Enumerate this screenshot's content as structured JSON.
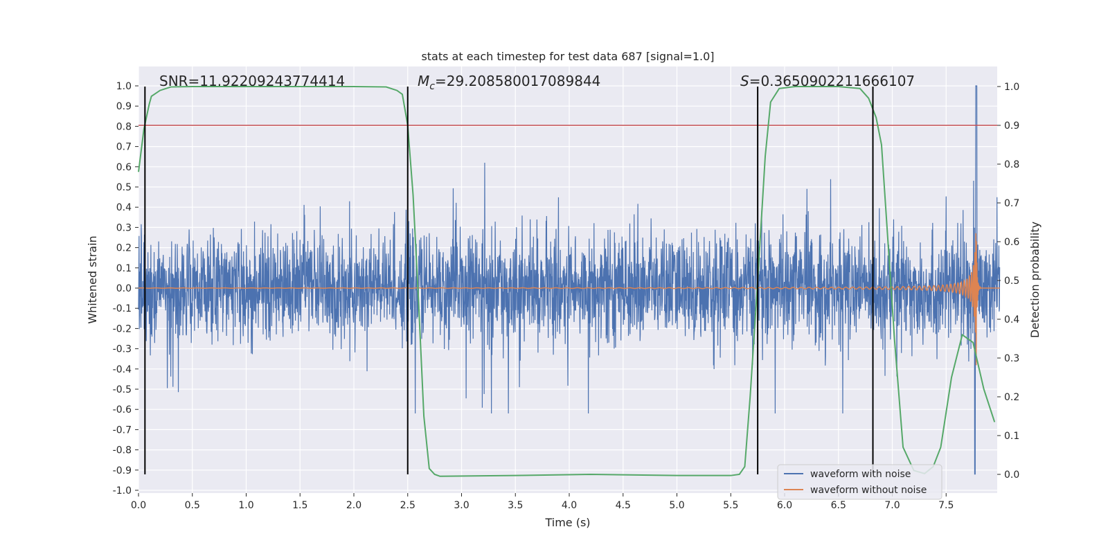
{
  "chart_data": {
    "type": "line",
    "title": "stats at each timestep for test data 687 [signal=1.0]",
    "xlabel": "Time (s)",
    "ylabel": "Whitened strain",
    "ylabel_right": "Detection probability",
    "xlim": [
      0.0,
      8.0
    ],
    "ylim": [
      -1.05,
      1.05
    ],
    "ylim_right": [
      -0.05,
      1.05
    ],
    "xticks": [
      "0.0",
      "0.5",
      "1.0",
      "1.5",
      "2.0",
      "2.5",
      "3.0",
      "3.5",
      "4.0",
      "4.5",
      "5.0",
      "5.5",
      "6.0",
      "6.5",
      "7.0",
      "7.5"
    ],
    "yticks": [
      "-1.0",
      "-0.9",
      "-0.8",
      "-0.7",
      "-0.6",
      "-0.5",
      "-0.4",
      "-0.3",
      "-0.2",
      "-0.1",
      "0.0",
      "0.1",
      "0.2",
      "0.3",
      "0.4",
      "0.5",
      "0.6",
      "0.7",
      "0.8",
      "0.9",
      "1.0"
    ],
    "yticks_right": [
      "0.0",
      "0.1",
      "0.2",
      "0.3",
      "0.4",
      "0.5",
      "0.6",
      "0.7",
      "0.8",
      "0.9",
      "1.0"
    ],
    "annotations": {
      "snr": "SNR=11.92209243774414",
      "mc_symbol": "M",
      "mc_sub": "c",
      "mc_value": "=29.208580017089844",
      "s_symbol": "S",
      "s_value": "=0.3650902211666107"
    },
    "threshold": {
      "value": 0.9,
      "axis": "right",
      "color": "#c44e52"
    },
    "vertical_markers": [
      0.06,
      2.5,
      5.75,
      6.82
    ],
    "merger_time": 7.78,
    "noisy_envelope": {
      "typical_abs": 0.33,
      "peak": 1.0,
      "min": -0.92
    },
    "series": [
      {
        "name": "waveform with noise",
        "color": "#4c72b0"
      },
      {
        "name": "waveform without noise",
        "color": "#dd8452"
      },
      {
        "color": "#55a868",
        "axis": "right",
        "x": [
          0.0,
          0.05,
          0.1,
          0.12,
          0.2,
          0.3,
          0.5,
          1.0,
          2.0,
          2.3,
          2.4,
          2.45,
          2.5,
          2.55,
          2.6,
          2.65,
          2.7,
          2.75,
          2.8,
          3.5,
          4.2,
          5.0,
          5.5,
          5.58,
          5.63,
          5.68,
          5.75,
          5.82,
          5.87,
          5.95,
          6.1,
          6.5,
          6.7,
          6.78,
          6.85,
          6.9,
          6.96,
          7.02,
          7.1,
          7.2,
          7.3,
          7.38,
          7.45,
          7.55,
          7.65,
          7.75,
          7.85,
          7.95
        ],
        "values": [
          0.78,
          0.89,
          0.955,
          0.975,
          0.99,
          0.999,
          1.0,
          1.0,
          1.0,
          0.999,
          0.99,
          0.98,
          0.9,
          0.72,
          0.45,
          0.15,
          0.015,
          0.0,
          -0.005,
          -0.003,
          0.0,
          -0.003,
          -0.003,
          0.0,
          0.02,
          0.2,
          0.5,
          0.82,
          0.96,
          0.995,
          1.0,
          1.0,
          0.995,
          0.97,
          0.92,
          0.85,
          0.6,
          0.35,
          0.07,
          0.01,
          0.002,
          0.02,
          0.07,
          0.25,
          0.36,
          0.34,
          0.22,
          0.135
        ]
      }
    ],
    "legend_location": "lower right",
    "grid": true
  }
}
